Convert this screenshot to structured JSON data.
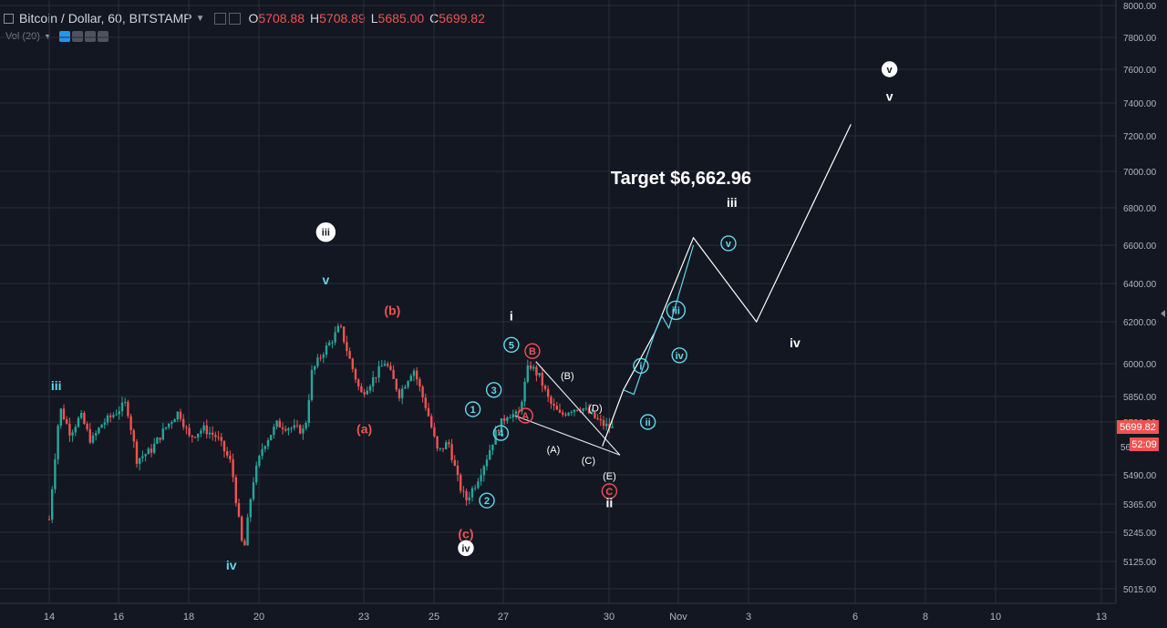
{
  "header": {
    "symbol": "Bitcoin / Dollar, 60, BITSTAMP",
    "o_label": "O",
    "o_value": "5708.88",
    "h_label": "H",
    "h_value": "5708.89",
    "l_label": "L",
    "l_value": "5685.00",
    "c_label": "C",
    "c_value": "5699.82"
  },
  "volume_indicator": {
    "label": "Vol (20)"
  },
  "price_badges": {
    "last": "5699.82",
    "countdown": "52:09",
    "hidden_tick": "56"
  },
  "colors": {
    "background": "#131722",
    "up": "#26a69a",
    "down": "#ef5350",
    "grid": "#2a2e39",
    "cyan": "#5fd8ea"
  },
  "chart_data": {
    "type": "line",
    "title": "Target $6,662.96",
    "y_ticks": [
      "8000.00",
      "7800.00",
      "7600.00",
      "7400.00",
      "7200.00",
      "7000.00",
      "6800.00",
      "6600.00",
      "6400.00",
      "6200.00",
      "6000.00",
      "5850.00",
      "5730.00",
      "5490.00",
      "5365.00",
      "5245.00",
      "5125.00",
      "5015.00"
    ],
    "y_tick_values": [
      8000,
      7800,
      7600,
      7400,
      7200,
      7000,
      6800,
      6600,
      6400,
      6200,
      6000,
      5850,
      5730,
      5490,
      5365,
      5245,
      5125,
      5015
    ],
    "x_ticks": [
      "14",
      "16",
      "18",
      "20",
      "23",
      "25",
      "27",
      "30",
      "Nov",
      "3",
      "6",
      "8",
      "10",
      "13"
    ],
    "ylim": [
      4960,
      8040
    ],
    "candle_price_path": [
      {
        "day": 0,
        "price": 5300
      },
      {
        "day": 0.3,
        "price": 5800
      },
      {
        "day": 0.6,
        "price": 5680
      },
      {
        "day": 0.9,
        "price": 5760
      },
      {
        "day": 1.2,
        "price": 5640
      },
      {
        "day": 1.5,
        "price": 5720
      },
      {
        "day": 1.8,
        "price": 5760
      },
      {
        "day": 2.2,
        "price": 5820
      },
      {
        "day": 2.5,
        "price": 5560
      },
      {
        "day": 2.9,
        "price": 5600
      },
      {
        "day": 3.3,
        "price": 5700
      },
      {
        "day": 3.7,
        "price": 5780
      },
      {
        "day": 4.0,
        "price": 5660
      },
      {
        "day": 4.4,
        "price": 5700
      },
      {
        "day": 4.8,
        "price": 5660
      },
      {
        "day": 5.2,
        "price": 5540
      },
      {
        "day": 5.4,
        "price": 5310
      },
      {
        "day": 5.55,
        "price": 5150
      },
      {
        "day": 5.8,
        "price": 5450
      },
      {
        "day": 6.1,
        "price": 5620
      },
      {
        "day": 6.5,
        "price": 5720
      },
      {
        "day": 7.0,
        "price": 5700
      },
      {
        "day": 7.3,
        "price": 5690
      },
      {
        "day": 7.5,
        "price": 5960
      },
      {
        "day": 7.8,
        "price": 6050
      },
      {
        "day": 8.1,
        "price": 6120
      },
      {
        "day": 8.3,
        "price": 6180
      },
      {
        "day": 8.6,
        "price": 6010
      },
      {
        "day": 8.9,
        "price": 5860
      },
      {
        "day": 9.2,
        "price": 5920
      },
      {
        "day": 9.6,
        "price": 6010
      },
      {
        "day": 10.0,
        "price": 5860
      },
      {
        "day": 10.4,
        "price": 5980
      },
      {
        "day": 10.8,
        "price": 5780
      },
      {
        "day": 11.1,
        "price": 5590
      },
      {
        "day": 11.4,
        "price": 5640
      },
      {
        "day": 11.7,
        "price": 5450
      },
      {
        "day": 11.9,
        "price": 5380
      },
      {
        "day": 12.2,
        "price": 5460
      },
      {
        "day": 12.5,
        "price": 5570
      },
      {
        "day": 12.8,
        "price": 5700
      },
      {
        "day": 13.1,
        "price": 5770
      },
      {
        "day": 13.4,
        "price": 5760
      },
      {
        "day": 13.7,
        "price": 6000
      },
      {
        "day": 14.0,
        "price": 5940
      },
      {
        "day": 14.3,
        "price": 5820
      },
      {
        "day": 14.6,
        "price": 5760
      },
      {
        "day": 14.9,
        "price": 5790
      },
      {
        "day": 15.2,
        "price": 5800
      },
      {
        "day": 15.5,
        "price": 5760
      },
      {
        "day": 15.8,
        "price": 5720
      },
      {
        "day": 16.1,
        "price": 5700
      }
    ],
    "projection_white": [
      {
        "day": 15.8,
        "price": 5620
      },
      {
        "day": 16.4,
        "price": 5880
      },
      {
        "day": 17.3,
        "price": 6150
      },
      {
        "day": 18.4,
        "price": 6640
      },
      {
        "day": 20.2,
        "price": 6200
      },
      {
        "day": 22.9,
        "price": 7270
      }
    ],
    "projection_cyan": [
      {
        "day": 16.4,
        "price": 5880
      },
      {
        "day": 16.7,
        "price": 5860
      },
      {
        "day": 17.3,
        "price": 6150
      },
      {
        "day": 17.5,
        "price": 6230
      },
      {
        "day": 17.7,
        "price": 6170
      },
      {
        "day": 18.4,
        "price": 6600
      }
    ],
    "triangle_lines": [
      {
        "from": {
          "day": 13.9,
          "price": 6010
        },
        "to": {
          "day": 16.3,
          "price": 5580
        }
      },
      {
        "from": {
          "day": 13.3,
          "price": 5760
        },
        "to": {
          "day": 16.3,
          "price": 5580
        }
      }
    ],
    "wave_labels": [
      {
        "text": "iii",
        "day": 0.2,
        "price": 5900,
        "style": "cyan",
        "circled": false
      },
      {
        "text": "iv",
        "day": 5.2,
        "price": 5110,
        "style": "cyan",
        "circled": false
      },
      {
        "text": "v",
        "day": 7.9,
        "price": 6420,
        "style": "cyan",
        "circled": false
      },
      {
        "text": "iii",
        "day": 7.9,
        "price": 6670,
        "style": "white",
        "circled": true
      },
      {
        "text": "(a)",
        "day": 9.0,
        "price": 5700,
        "style": "red",
        "circled": false
      },
      {
        "text": "(b)",
        "day": 9.8,
        "price": 6260,
        "style": "red",
        "circled": false
      },
      {
        "text": "(c)",
        "day": 11.9,
        "price": 5240,
        "style": "red",
        "circled": false
      },
      {
        "text": "iv",
        "day": 11.9,
        "price": 5180,
        "style": "white",
        "circled": true
      },
      {
        "text": "1",
        "day": 12.1,
        "price": 5790,
        "style": "cyan",
        "circled": true
      },
      {
        "text": "2",
        "day": 12.5,
        "price": 5380,
        "style": "cyan",
        "circled": true
      },
      {
        "text": "3",
        "day": 12.7,
        "price": 5880,
        "style": "cyan",
        "circled": true
      },
      {
        "text": "4",
        "day": 12.9,
        "price": 5680,
        "style": "cyan",
        "circled": true
      },
      {
        "text": "5",
        "day": 13.2,
        "price": 6090,
        "style": "cyan",
        "circled": true
      },
      {
        "text": "i",
        "day": 13.2,
        "price": 6230,
        "style": "white",
        "circled": false
      },
      {
        "text": "A",
        "day": 13.6,
        "price": 5760,
        "style": "red",
        "circled": true
      },
      {
        "text": "B",
        "day": 13.8,
        "price": 6060,
        "style": "red",
        "circled": true
      },
      {
        "text": "(B)",
        "day": 14.8,
        "price": 5950,
        "style": "white-small",
        "circled": false
      },
      {
        "text": "(A)",
        "day": 14.4,
        "price": 5610,
        "style": "white-small",
        "circled": false
      },
      {
        "text": "(D)",
        "day": 15.6,
        "price": 5800,
        "style": "white-small",
        "circled": false
      },
      {
        "text": "(C)",
        "day": 15.4,
        "price": 5560,
        "style": "white-small",
        "circled": false
      },
      {
        "text": "(E)",
        "day": 16.0,
        "price": 5490,
        "style": "white-small",
        "circled": false
      },
      {
        "text": "C",
        "day": 16.0,
        "price": 5420,
        "style": "red",
        "circled": true
      },
      {
        "text": "ii",
        "day": 16.0,
        "price": 5370,
        "style": "white",
        "circled": false
      },
      {
        "text": "i",
        "day": 16.9,
        "price": 5990,
        "style": "cyan",
        "circled": true
      },
      {
        "text": "ii",
        "day": 17.1,
        "price": 5730,
        "style": "cyan",
        "circled": true
      },
      {
        "text": "iii",
        "day": 17.9,
        "price": 6260,
        "style": "cyan",
        "circled": true
      },
      {
        "text": "iv",
        "day": 18.0,
        "price": 6040,
        "style": "cyan",
        "circled": true
      },
      {
        "text": "v",
        "day": 19.4,
        "price": 6610,
        "style": "cyan",
        "circled": true
      },
      {
        "text": "iii",
        "day": 19.5,
        "price": 6830,
        "style": "white",
        "circled": false
      },
      {
        "text": "iv",
        "day": 21.3,
        "price": 6100,
        "style": "white",
        "circled": false
      },
      {
        "text": "v",
        "day": 24.0,
        "price": 7440,
        "style": "white",
        "circled": false
      },
      {
        "text": "v",
        "day": 24.0,
        "price": 7600,
        "style": "white",
        "circled": true
      }
    ],
    "last_price": 5699.82,
    "grid": true,
    "legend": "none"
  }
}
